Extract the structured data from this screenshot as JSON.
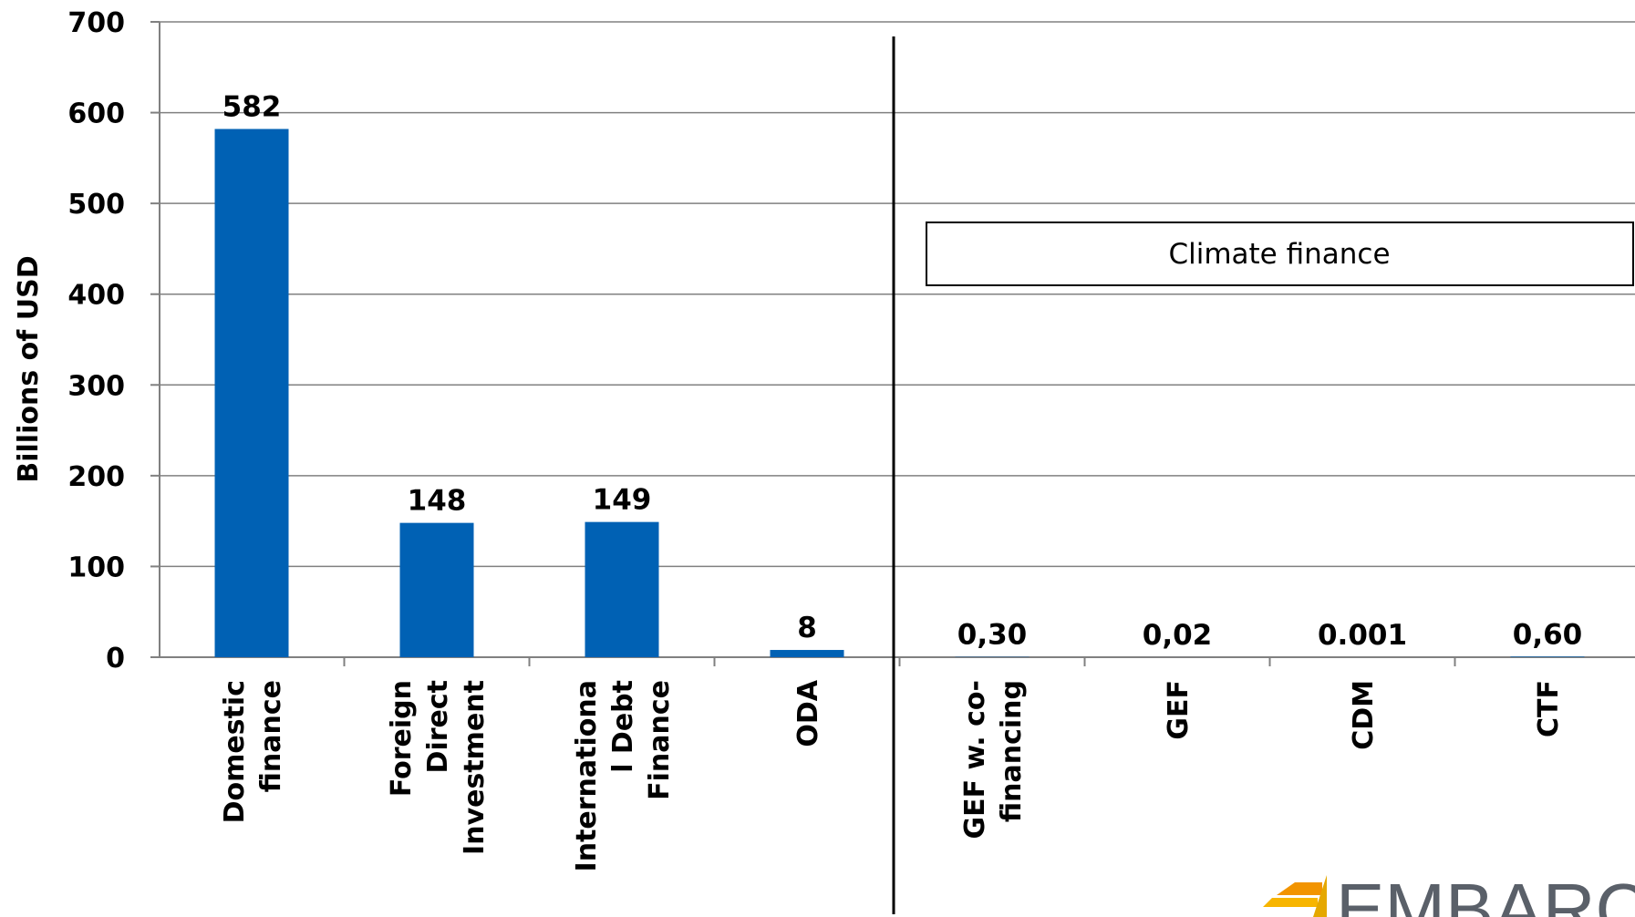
{
  "chart_data": {
    "type": "bar",
    "categories": [
      [
        "Domestic",
        "finance"
      ],
      [
        "Foreign",
        "Direct",
        "Investment"
      ],
      [
        "Internationa",
        "l Debt",
        "Finance"
      ],
      [
        "ODA"
      ],
      [
        "GEF w. co-",
        "financing"
      ],
      [
        "GEF"
      ],
      [
        "CDM"
      ],
      [
        "CTF"
      ]
    ],
    "values": [
      582,
      148,
      149,
      8,
      0.3,
      0.02,
      0.001,
      0.6
    ],
    "value_labels": [
      "582",
      "148",
      "149",
      "8",
      "0,30",
      "0,02",
      "0.001",
      "0,60"
    ],
    "ylabel": "Billions of USD",
    "ylim": [
      0,
      700
    ],
    "yticks": [
      0,
      100,
      200,
      300,
      400,
      500,
      600,
      700
    ],
    "grid": true,
    "bar_color": "#0061b4",
    "annotation": "Climate finance",
    "separator_after_index": 3
  },
  "logo": {
    "text": "EMBARC"
  }
}
